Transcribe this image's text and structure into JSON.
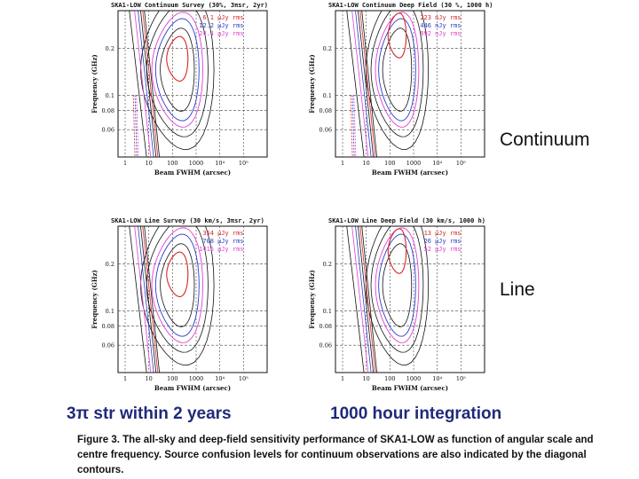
{
  "side_labels": {
    "top": "Continuum",
    "bottom": "Line"
  },
  "bottom_labels": {
    "left": "3π str within 2 years",
    "right": "1000 hour integration"
  },
  "caption": {
    "prefix": "Figure 3.",
    "text": "The all-sky and deep-field sensitivity performance of SKA1-LOW as function of angular scale and centre frequency. Source confusion levels for continuum observations are also indicated by the diagonal contours."
  },
  "colors": {
    "level1": "#d62728",
    "level2": "#2b3bcc",
    "level3": "#e040d0",
    "contour": "#111111"
  },
  "chart_data": [
    {
      "type": "contour",
      "title": "SKA1-LOW Continuum Survey (30%, 3πsr, 2yr)",
      "xlabel": "Beam FWHM (arcsec)",
      "ylabel": "Frequency (GHz)",
      "xscale": "log",
      "yscale": "log",
      "xlim": [
        0.5,
        1000000
      ],
      "ylim": [
        0.04,
        0.35
      ],
      "xticks": [
        "1",
        "10",
        "100",
        "1000",
        "10⁴",
        "10⁵"
      ],
      "yticks": [
        "0.2",
        "0.1",
        "0.08",
        "0.06"
      ],
      "grid": true,
      "legend_position": "top-right",
      "legend": [
        {
          "value": "6.1",
          "unit": "µJy rms",
          "color": "#d62728"
        },
        {
          "value": "12.2",
          "unit": "µJy rms",
          "color": "#2b3bcc"
        },
        {
          "value": "24.4",
          "unit": "µJy rms",
          "color": "#e040d0"
        }
      ],
      "confusion_lines": true
    },
    {
      "type": "contour",
      "title": "SKA1-LOW Continuum Deep Field (30 %, 1000 h)",
      "xlabel": "Beam FWHM (arcsec)",
      "ylabel": "Frequency (GHz)",
      "xscale": "log",
      "yscale": "log",
      "xlim": [
        0.5,
        1000000
      ],
      "ylim": [
        0.04,
        0.35
      ],
      "xticks": [
        "1",
        "10",
        "100",
        "1000",
        "10⁴",
        "10⁵"
      ],
      "yticks": [
        "0.2",
        "0.1",
        "0.08",
        "0.06"
      ],
      "grid": true,
      "legend_position": "top-right",
      "legend": [
        {
          "value": "223",
          "unit": "nJy rms",
          "color": "#d62728"
        },
        {
          "value": "446",
          "unit": "nJy rms",
          "color": "#2b3bcc"
        },
        {
          "value": "892",
          "unit": "nJy rms",
          "color": "#e040d0"
        }
      ],
      "confusion_lines": true
    },
    {
      "type": "contour",
      "title": "SKA1-LOW Line Survey (30 km/s, 3πsr, 2yr)",
      "xlabel": "Beam FWHM (arcsec)",
      "ylabel": "Frequency (GHz)",
      "xscale": "log",
      "yscale": "log",
      "xlim": [
        0.5,
        1000000
      ],
      "ylim": [
        0.04,
        0.35
      ],
      "xticks": [
        "1",
        "10",
        "100",
        "1000",
        "10⁴",
        "10⁵"
      ],
      "yticks": [
        "0.2",
        "0.1",
        "0.08",
        "0.06"
      ],
      "grid": true,
      "legend_position": "top-right",
      "legend": [
        {
          "value": "354",
          "unit": "µJy rms",
          "color": "#d62728"
        },
        {
          "value": "708",
          "unit": "µJy rms",
          "color": "#2b3bcc"
        },
        {
          "value": "1416",
          "unit": "µJy rms",
          "color": "#e040d0"
        }
      ],
      "confusion_lines": false
    },
    {
      "type": "contour",
      "title": "SKA1-LOW Line Deep Field (30 km/s, 1000 h)",
      "xlabel": "Beam FWHM (arcsec)",
      "ylabel": "Frequency (GHz)",
      "xscale": "log",
      "yscale": "log",
      "xlim": [
        0.5,
        1000000
      ],
      "ylim": [
        0.04,
        0.35
      ],
      "xticks": [
        "1",
        "10",
        "100",
        "1000",
        "10⁴",
        "10⁵"
      ],
      "yticks": [
        "0.2",
        "0.1",
        "0.08",
        "0.06"
      ],
      "grid": true,
      "legend_position": "top-right",
      "legend": [
        {
          "value": "13",
          "unit": "µJy rms",
          "color": "#d62728"
        },
        {
          "value": "26",
          "unit": "µJy rms",
          "color": "#2b3bcc"
        },
        {
          "value": "52",
          "unit": "µJy rms",
          "color": "#e040d0"
        }
      ],
      "confusion_lines": false
    }
  ]
}
